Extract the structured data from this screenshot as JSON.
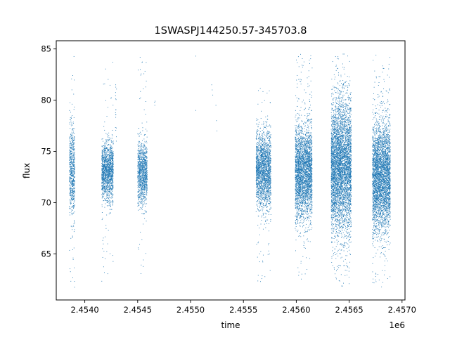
{
  "chart_data": {
    "type": "scatter",
    "title": "1SWASPJ144250.57-345703.8",
    "xlabel": "time",
    "ylabel": "flux",
    "x_offset_label": "1e6",
    "xlim": [
      2453730,
      2457028
    ],
    "ylim": [
      60.5,
      85.8
    ],
    "x_ticks": [
      2.454,
      2.4545,
      2.455,
      2.4555,
      2.456,
      2.4565,
      2.457
    ],
    "x_tick_labels": [
      "2.4540",
      "2.4545",
      "2.4550",
      "2.4555",
      "2.4560",
      "2.4565",
      "2.4570"
    ],
    "y_ticks": [
      65,
      70,
      75,
      80,
      85
    ],
    "y_tick_labels": [
      "65",
      "70",
      "75",
      "80",
      "85"
    ],
    "grid": false,
    "legend": "none",
    "marker_color": "#1f77b4",
    "series": [
      {
        "clusters": [
          {
            "x_range": [
              2453855,
              2453905
            ],
            "center": 73.0,
            "core_spread": 2.2,
            "outlier_range": [
              61.7,
              84.5
            ],
            "density": 1.0
          },
          {
            "x_range": [
              2454160,
              2454270
            ],
            "center": 73.0,
            "core_spread": 1.4,
            "outlier_range": [
              62.0,
              84.0
            ],
            "density": 1.0
          },
          {
            "x_range": [
              2454290,
              2454300
            ],
            "center": 78.5,
            "core_spread": 2.5,
            "outlier_range": [
              76.0,
              81.5
            ],
            "density": 0.1
          },
          {
            "x_range": [
              2454500,
              2454590
            ],
            "center": 72.9,
            "core_spread": 1.5,
            "outlier_range": [
              61.8,
              84.2
            ],
            "density": 0.9
          },
          {
            "x_range": [
              2455620,
              2455760
            ],
            "center": 73.2,
            "core_spread": 1.8,
            "outlier_range": [
              62.3,
              81.5
            ],
            "density": 1.1
          },
          {
            "x_range": [
              2455990,
              2456150
            ],
            "center": 73.0,
            "core_spread": 2.2,
            "outlier_range": [
              62.5,
              84.5
            ],
            "density": 1.4
          },
          {
            "x_range": [
              2456330,
              2456520
            ],
            "center": 73.5,
            "core_spread": 3.2,
            "outlier_range": [
              61.7,
              84.5
            ],
            "density": 1.8
          },
          {
            "x_range": [
              2456720,
              2456890
            ],
            "center": 72.5,
            "core_spread": 2.6,
            "outlier_range": [
              61.7,
              84.5
            ],
            "density": 1.6
          }
        ],
        "sparse_points": [
          [
            2454660,
            79.8
          ],
          [
            2454662,
            79.5
          ],
          [
            2454665,
            79.9
          ],
          [
            2455050,
            84.3
          ],
          [
            2455050,
            79.0
          ],
          [
            2455200,
            81.5
          ],
          [
            2455205,
            81.0
          ],
          [
            2455210,
            80.5
          ],
          [
            2455240,
            79.5
          ],
          [
            2455245,
            78.0
          ],
          [
            2455250,
            77.0
          ]
        ]
      }
    ]
  }
}
